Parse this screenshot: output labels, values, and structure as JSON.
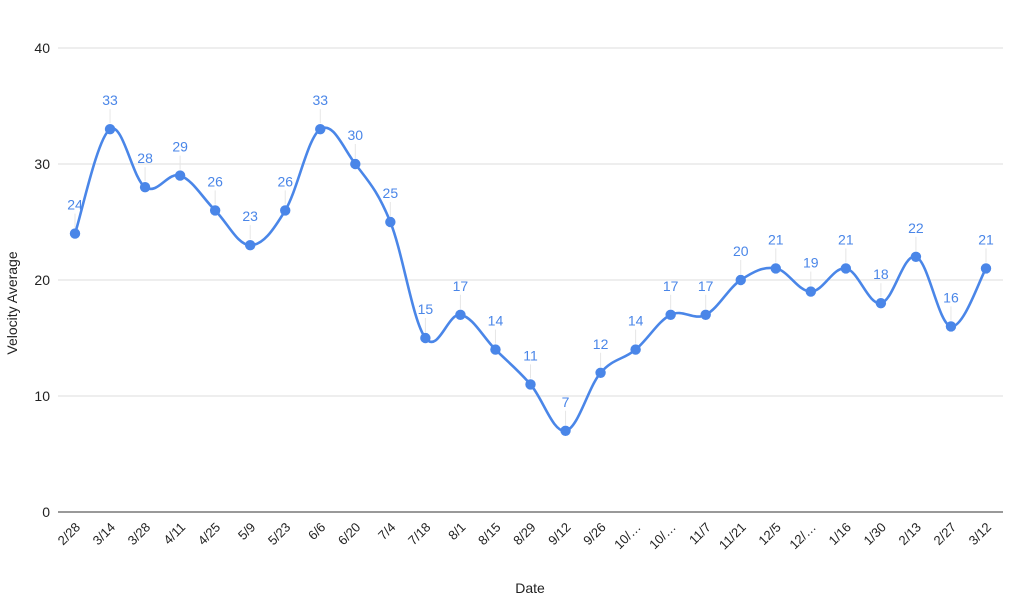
{
  "chart_data": {
    "type": "line",
    "title": "",
    "xlabel": "Date",
    "ylabel": "Velocity Average",
    "ylim": [
      0,
      40
    ],
    "yticks": [
      0,
      10,
      20,
      30,
      40
    ],
    "grid": true,
    "smooth": true,
    "data_labels": true,
    "color": "#4a86e8",
    "categories": [
      "2/28",
      "3/14",
      "3/28",
      "4/11",
      "4/25",
      "5/9",
      "5/23",
      "6/6",
      "6/20",
      "7/4",
      "7/18",
      "8/1",
      "8/15",
      "8/29",
      "9/12",
      "9/26",
      "10/…",
      "10/…",
      "11/7",
      "11/21",
      "12/5",
      "12/…",
      "1/16",
      "1/30",
      "2/13",
      "2/27",
      "3/12"
    ],
    "values": [
      24,
      33,
      28,
      29,
      26,
      23,
      26,
      33,
      30,
      25,
      15,
      17,
      14,
      11,
      7,
      12,
      14,
      17,
      17,
      20,
      21,
      19,
      21,
      18,
      22,
      16,
      21
    ]
  }
}
